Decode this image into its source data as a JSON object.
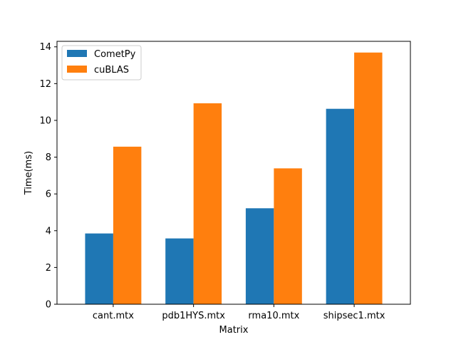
{
  "chart_data": {
    "type": "bar",
    "title": "",
    "xlabel": "Matrix",
    "ylabel": "Time(ms)",
    "categories": [
      "cant.mtx",
      "pdb1HYS.mtx",
      "rma10.mtx",
      "shipsec1.mtx"
    ],
    "series": [
      {
        "name": "CometPy",
        "color": "#1f77b4",
        "values": [
          3.85,
          3.58,
          5.22,
          10.63
        ]
      },
      {
        "name": "cuBLAS",
        "color": "#ff7f0e",
        "values": [
          8.57,
          10.93,
          7.39,
          13.69
        ]
      }
    ],
    "ylim": [
      0,
      14.3
    ],
    "yticks": [
      0,
      2,
      4,
      6,
      8,
      10,
      12,
      14
    ],
    "grid": false,
    "legend_position": "top-left"
  }
}
